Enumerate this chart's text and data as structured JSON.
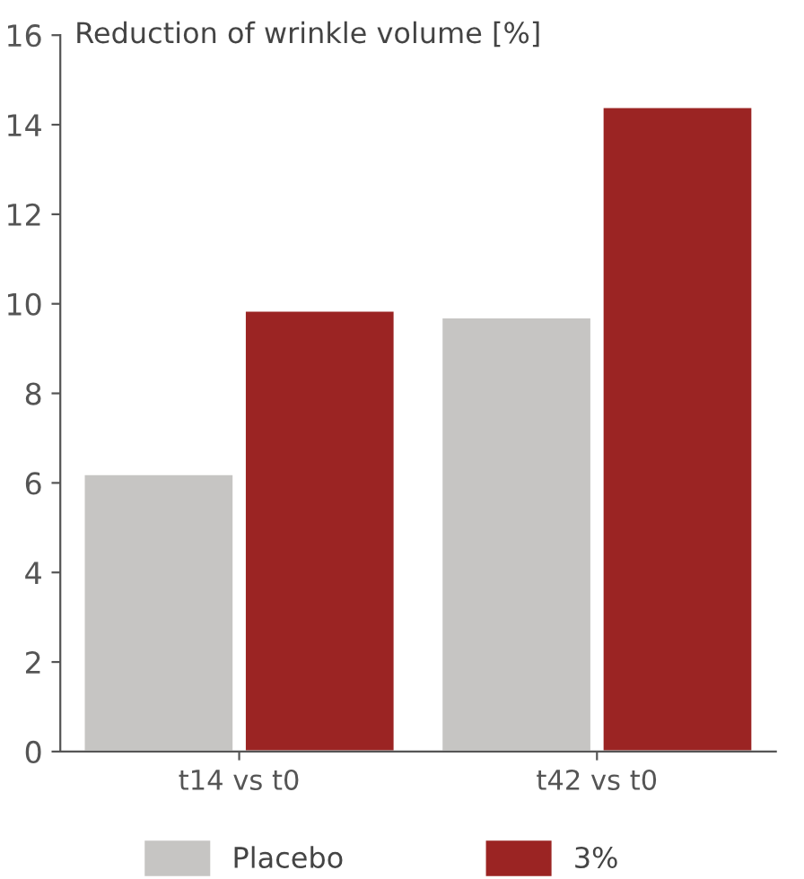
{
  "chart_data": {
    "type": "bar",
    "ylabel": "Reduction of wrinkle volume [%]",
    "categories": [
      "t14 vs t0",
      "t42 vs t0"
    ],
    "series": [
      {
        "name": "Placebo",
        "color": "#c6c5c3",
        "values": [
          6.2,
          9.7
        ]
      },
      {
        "name": "3%",
        "color": "#9b2423",
        "values": [
          9.85,
          14.4
        ]
      }
    ],
    "ylim": [
      0,
      16
    ],
    "yticks": [
      0,
      2,
      4,
      6,
      8,
      10,
      12,
      14,
      16
    ],
    "grid": false,
    "legend": "bottom"
  }
}
